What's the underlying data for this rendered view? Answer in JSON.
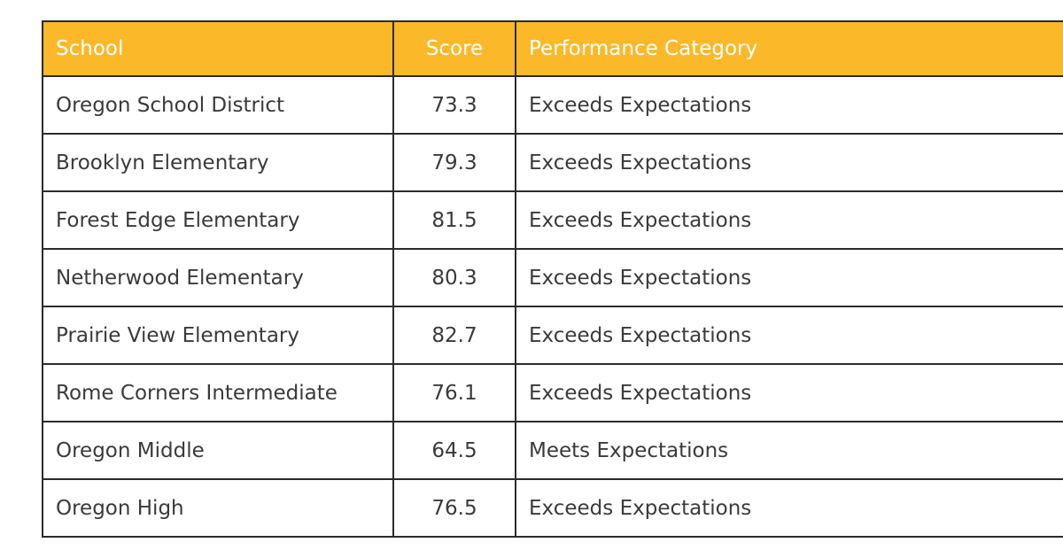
{
  "table": {
    "header": [
      "School",
      "Score",
      "Performance Category"
    ],
    "rows": [
      [
        "Oregon School District",
        73.3,
        "Exceeds Expectations"
      ],
      [
        "Brooklyn Elementary",
        79.3,
        "Exceeds Expectations"
      ],
      [
        "Forest Edge Elementary",
        81.5,
        "Exceeds Expectations"
      ],
      [
        "Netherwood Elementary",
        80.3,
        "Exceeds Expectations"
      ],
      [
        "Prairie View Elementary",
        82.7,
        "Exceeds Expectations"
      ],
      [
        "Rome Corners Intermediate",
        76.1,
        "Exceeds Expectations"
      ],
      [
        "Oregon Middle",
        64.5,
        "Meets Expectations"
      ],
      [
        "Oregon High",
        76.5,
        "Exceeds Expectations"
      ]
    ]
  }
}
